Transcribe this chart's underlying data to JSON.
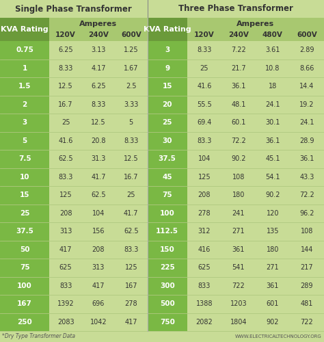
{
  "title_left": "Single Phase Transformer",
  "title_right": "Three Phase Transformer",
  "subtitle_amperes": "Amperes",
  "kva_label": "KVA Rating",
  "single_phase_voltages": [
    "120V",
    "240V",
    "600V"
  ],
  "three_phase_voltages": [
    "120V",
    "240V",
    "480V",
    "600V"
  ],
  "single_phase_data": [
    {
      "kva": "0.75",
      "vals": [
        "6.25",
        "3.13",
        "1.25"
      ]
    },
    {
      "kva": "1",
      "vals": [
        "8.33",
        "4.17",
        "1.67"
      ]
    },
    {
      "kva": "1.5",
      "vals": [
        "12.5",
        "6.25",
        "2.5"
      ]
    },
    {
      "kva": "2",
      "vals": [
        "16.7",
        "8.33",
        "3.33"
      ]
    },
    {
      "kva": "3",
      "vals": [
        "25",
        "12.5",
        "5"
      ]
    },
    {
      "kva": "5",
      "vals": [
        "41.6",
        "20.8",
        "8.33"
      ]
    },
    {
      "kva": "7.5",
      "vals": [
        "62.5",
        "31.3",
        "12.5"
      ]
    },
    {
      "kva": "10",
      "vals": [
        "83.3",
        "41.7",
        "16.7"
      ]
    },
    {
      "kva": "15",
      "vals": [
        "125",
        "62.5",
        "25"
      ]
    },
    {
      "kva": "25",
      "vals": [
        "208",
        "104",
        "41.7"
      ]
    },
    {
      "kva": "37.5",
      "vals": [
        "313",
        "156",
        "62.5"
      ]
    },
    {
      "kva": "50",
      "vals": [
        "417",
        "208",
        "83.3"
      ]
    },
    {
      "kva": "75",
      "vals": [
        "625",
        "313",
        "125"
      ]
    },
    {
      "kva": "100",
      "vals": [
        "833",
        "417",
        "167"
      ]
    },
    {
      "kva": "167",
      "vals": [
        "1392",
        "696",
        "278"
      ]
    },
    {
      "kva": "250",
      "vals": [
        "2083",
        "1042",
        "417"
      ]
    }
  ],
  "three_phase_data": [
    {
      "kva": "3",
      "vals": [
        "8.33",
        "7.22",
        "3.61",
        "2.89"
      ]
    },
    {
      "kva": "9",
      "vals": [
        "25",
        "21.7",
        "10.8",
        "8.66"
      ]
    },
    {
      "kva": "15",
      "vals": [
        "41.6",
        "36.1",
        "18",
        "14.4"
      ]
    },
    {
      "kva": "20",
      "vals": [
        "55.5",
        "48.1",
        "24.1",
        "19.2"
      ]
    },
    {
      "kva": "25",
      "vals": [
        "69.4",
        "60.1",
        "30.1",
        "24.1"
      ]
    },
    {
      "kva": "30",
      "vals": [
        "83.3",
        "72.2",
        "36.1",
        "28.9"
      ]
    },
    {
      "kva": "37.5",
      "vals": [
        "104",
        "90.2",
        "45.1",
        "36.1"
      ]
    },
    {
      "kva": "45",
      "vals": [
        "125",
        "108",
        "54.1",
        "43.3"
      ]
    },
    {
      "kva": "75",
      "vals": [
        "208",
        "180",
        "90.2",
        "72.2"
      ]
    },
    {
      "kva": "100",
      "vals": [
        "278",
        "241",
        "120",
        "96.2"
      ]
    },
    {
      "kva": "112.5",
      "vals": [
        "312",
        "271",
        "135",
        "108"
      ]
    },
    {
      "kva": "150",
      "vals": [
        "416",
        "361",
        "180",
        "144"
      ]
    },
    {
      "kva": "225",
      "vals": [
        "625",
        "541",
        "271",
        "217"
      ]
    },
    {
      "kva": "300",
      "vals": [
        "833",
        "722",
        "361",
        "289"
      ]
    },
    {
      "kva": "500",
      "vals": [
        "1388",
        "1203",
        "601",
        "481"
      ]
    },
    {
      "kva": "750",
      "vals": [
        "2082",
        "1804",
        "902",
        "722"
      ]
    }
  ],
  "footnote": "*Dry Type Transformer Data",
  "website": "WWW.ELECTRICALTECHNOLOGY.ORG",
  "color_title_bg": "#c8dc96",
  "color_header_dark": "#6b9a3a",
  "color_header_amp": "#a8c870",
  "color_kva_bg": "#6b9a3a",
  "color_volt_bg": "#a8c870",
  "color_row_kva": "#7ab844",
  "color_row_data": "#c8dc96",
  "color_kva_text": "#ffffff",
  "color_volt_text": "#333333",
  "color_data_text": "#333333",
  "color_title_text": "#333333",
  "color_divider": "#ffffff",
  "color_bg": "#c8dc96",
  "color_sep": "#aac870"
}
